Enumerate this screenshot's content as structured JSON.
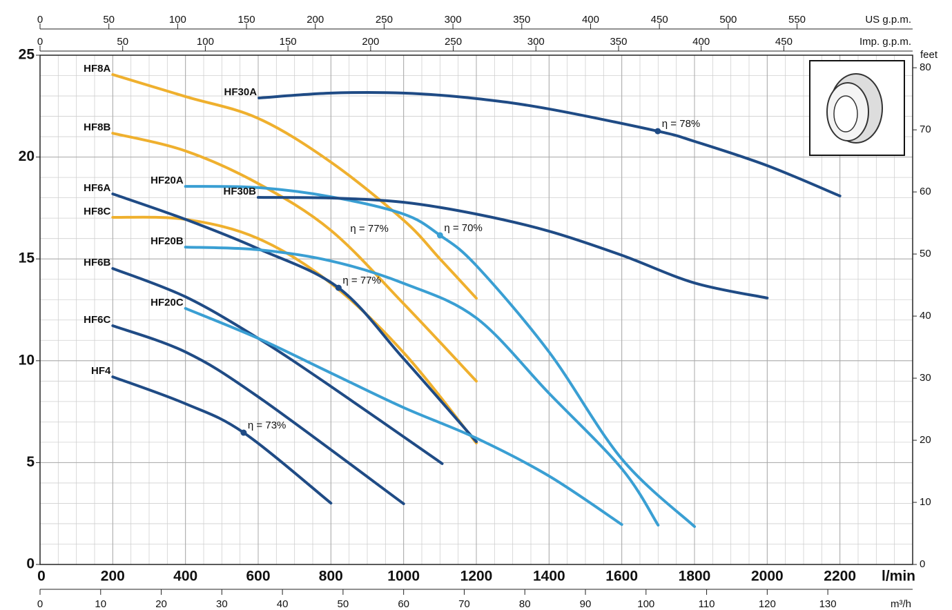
{
  "chart_data": {
    "type": "line",
    "x_label": "l/min",
    "y2_label": "feet",
    "xlim": [
      0,
      2400
    ],
    "xticks": [
      0,
      200,
      400,
      600,
      800,
      1000,
      1200,
      1400,
      1600,
      1800,
      2000,
      2200
    ],
    "ylim": [
      0,
      25
    ],
    "yticks": [
      0,
      5,
      10,
      15,
      20,
      25
    ],
    "y2lim": [
      0,
      82.02
    ],
    "y2ticks": [
      0,
      10,
      20,
      30,
      40,
      50,
      60,
      70,
      80
    ],
    "grid": true,
    "x_minor": 50,
    "y_minor": 1,
    "top_axes": [
      {
        "label": "US g.p.m.",
        "lim": [
          0,
          634.0
        ],
        "ticks": [
          0,
          50,
          100,
          150,
          200,
          250,
          300,
          350,
          400,
          450,
          500,
          550
        ]
      },
      {
        "label": "Imp. g.p.m.",
        "lim": [
          0,
          527.93
        ],
        "ticks": [
          0,
          50,
          100,
          150,
          200,
          250,
          300,
          350,
          400,
          450
        ]
      }
    ],
    "bottom_axis": {
      "label": "m³/h",
      "lim": [
        0,
        144
      ],
      "ticks": [
        0,
        10,
        20,
        30,
        40,
        50,
        60,
        70,
        80,
        90,
        100,
        110,
        120,
        130
      ]
    },
    "series": [
      {
        "name": "HF8A",
        "color": "#efb02e",
        "x": [
          200,
          400,
          600,
          800,
          1000,
          1100,
          1200
        ],
        "values": [
          24.05,
          22.97,
          21.9,
          19.75,
          16.9,
          15.0,
          13.07
        ]
      },
      {
        "name": "HF8B",
        "color": "#efb02e",
        "x": [
          200,
          400,
          600,
          800,
          1000,
          1200
        ],
        "values": [
          21.17,
          20.3,
          18.7,
          16.4,
          12.8,
          9.0
        ]
      },
      {
        "name": "HF8C",
        "color": "#efb02e",
        "x": [
          200,
          400,
          600,
          800,
          1000,
          1200
        ],
        "values": [
          17.04,
          16.94,
          16.0,
          13.8,
          10.4,
          5.96
        ]
      },
      {
        "name": "HF6A",
        "color": "#1f4b85",
        "x": [
          200,
          400,
          600,
          821,
          1000,
          1200
        ],
        "values": [
          18.19,
          16.94,
          15.5,
          13.58,
          10.1,
          6.03
        ]
      },
      {
        "name": "HF6B",
        "color": "#1f4b85",
        "x": [
          200,
          400,
          600,
          800,
          1106
        ],
        "values": [
          14.53,
          13.14,
          11.1,
          8.74,
          4.95
        ]
      },
      {
        "name": "HF6C",
        "color": "#1f4b85",
        "x": [
          200,
          400,
          600,
          1000
        ],
        "values": [
          11.72,
          10.43,
          8.23,
          2.98
        ]
      },
      {
        "name": "HF4",
        "color": "#1f4b85",
        "x": [
          200,
          400,
          560,
          800
        ],
        "values": [
          9.21,
          7.89,
          6.47,
          3.01
        ]
      },
      {
        "name": "HF20A",
        "color": "#3a9fd3",
        "x": [
          400,
          600,
          800,
          1000,
          1100,
          1200,
          1400,
          1600,
          1800
        ],
        "values": [
          18.56,
          18.5,
          18.05,
          17.2,
          16.16,
          14.67,
          10.43,
          5.18,
          1.86
        ]
      },
      {
        "name": "HF20B",
        "color": "#3a9fd3",
        "x": [
          400,
          600,
          800,
          1000,
          1200,
          1400,
          1600,
          1700
        ],
        "values": [
          15.58,
          15.45,
          14.9,
          13.8,
          12.1,
          8.4,
          4.7,
          1.93
        ]
      },
      {
        "name": "HF20C",
        "color": "#3a9fd3",
        "x": [
          400,
          600,
          800,
          1000,
          1200,
          1400,
          1600
        ],
        "values": [
          12.57,
          11.1,
          9.4,
          7.7,
          6.2,
          4.34,
          1.96
        ]
      },
      {
        "name": "HF30A",
        "color": "#1f4b85",
        "x": [
          602,
          800,
          1000,
          1200,
          1400,
          1699,
          1800,
          2000,
          2200
        ],
        "values": [
          22.9,
          23.14,
          23.14,
          22.87,
          22.36,
          21.27,
          20.77,
          19.58,
          18.09
        ]
      },
      {
        "name": "HF30B",
        "color": "#1f4b85",
        "x": [
          600,
          800,
          1000,
          1200,
          1400,
          1600,
          1800,
          2000
        ],
        "values": [
          18.02,
          17.99,
          17.78,
          17.2,
          16.36,
          15.18,
          13.82,
          13.08
        ]
      }
    ],
    "annotations": [
      {
        "text": "η = 78%",
        "x": 1699,
        "y": 21.27,
        "marker": true,
        "color": "#1f4b85"
      },
      {
        "text": "η = 70%",
        "x": 1100,
        "y": 16.16,
        "marker": true,
        "color": "#3a9fd3"
      },
      {
        "text": "η = 77%",
        "x": 821,
        "y": 13.58,
        "marker": true,
        "color": "#1f4b85"
      },
      {
        "text": "η = 77%",
        "x": 906,
        "y": 16.46,
        "marker": false,
        "color": "#1f4b85"
      },
      {
        "text": "η = 73%",
        "x": 560,
        "y": 6.47,
        "marker": true,
        "color": "#1f4b85"
      }
    ]
  }
}
